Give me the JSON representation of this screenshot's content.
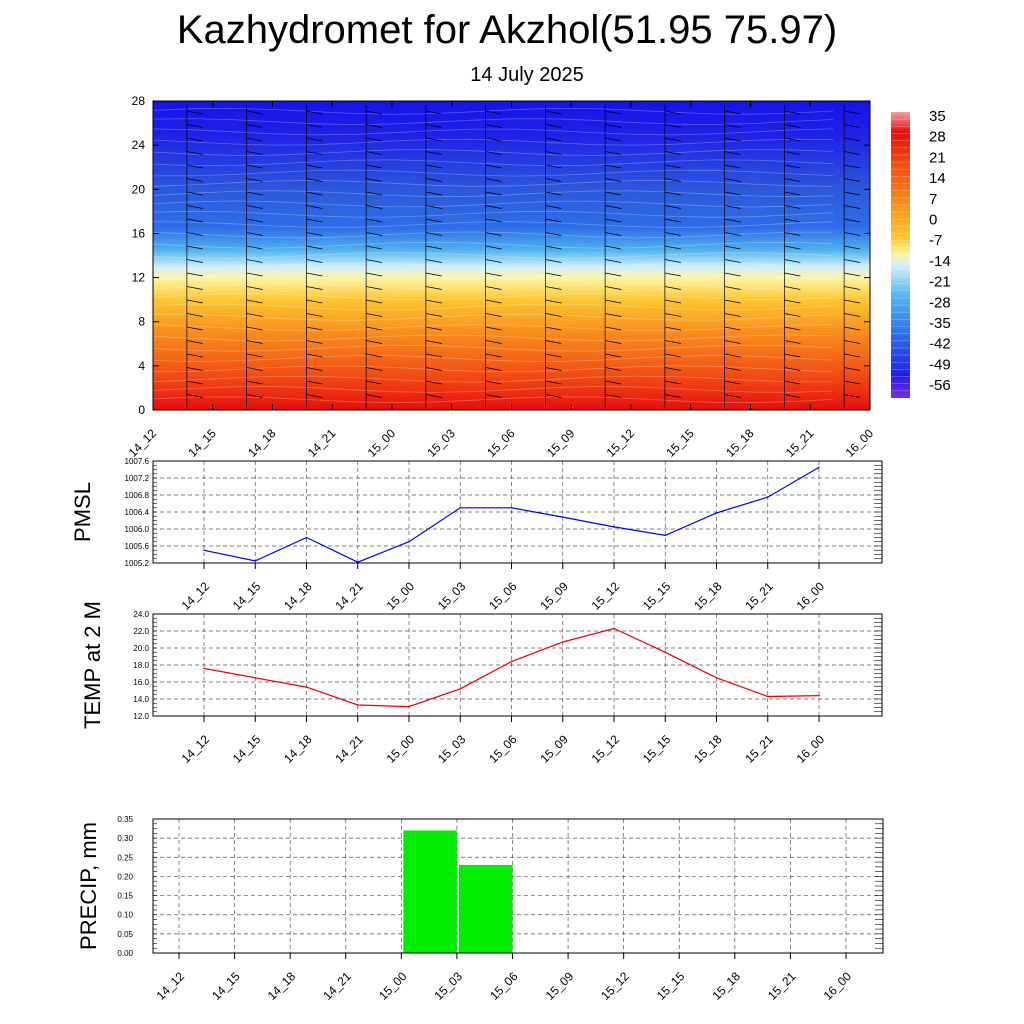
{
  "title": "Kazhydromet for Akzhol(51.95 75.97)",
  "subtitle": "14 July 2025",
  "chart_data": [
    {
      "type": "heatmap",
      "y_ticks": [
        "0",
        "4",
        "8",
        "12",
        "16",
        "20",
        "24",
        "28"
      ],
      "ylim": [
        0,
        28
      ],
      "x_ticks": [
        "14_12",
        "14_15",
        "14_18",
        "14_21",
        "15_00",
        "15_03",
        "15_06",
        "15_09",
        "15_12",
        "15_15",
        "15_18",
        "15_21",
        "16_00"
      ],
      "colorbar_labels": [
        "35",
        "28",
        "21",
        "14",
        "7",
        "0",
        "-7",
        "-14",
        "-21",
        "-28",
        "-35",
        "-42",
        "-49",
        "-56"
      ],
      "color_stops": [
        {
          "level": 0,
          "color": "#e60e0e"
        },
        {
          "level": 3,
          "color": "#f24a14"
        },
        {
          "level": 7,
          "color": "#f98d1c"
        },
        {
          "level": 10,
          "color": "#fcc830"
        },
        {
          "level": 12,
          "color": "#fff4a8"
        },
        {
          "level": 13,
          "color": "#cdeefa"
        },
        {
          "level": 14.5,
          "color": "#4fb2ee"
        },
        {
          "level": 16.5,
          "color": "#2e6ee8"
        },
        {
          "level": 20,
          "color": "#2c58dc"
        },
        {
          "level": 25,
          "color": "#2020e8"
        },
        {
          "level": 28,
          "color": "#1414ea"
        }
      ],
      "wind_barbs": true
    },
    {
      "type": "line",
      "ylabel": "PMSL",
      "ylim": [
        1005.2,
        1007.6
      ],
      "y_ticks": [
        "1005.2",
        "1005.6",
        "1006.0",
        "1006.4",
        "1006.8",
        "1007.2",
        "1007.6"
      ],
      "x": [
        "14_12",
        "14_15",
        "14_18",
        "14_21",
        "15_00",
        "15_03",
        "15_06",
        "15_09",
        "15_12",
        "15_15",
        "15_18",
        "15_21",
        "16_00"
      ],
      "values": [
        1005.5,
        1005.25,
        1005.8,
        1005.22,
        1005.7,
        1006.5,
        1006.5,
        1006.28,
        1006.05,
        1005.85,
        1006.38,
        1006.75,
        1007.45
      ],
      "color": "#0000ee",
      "grid": true
    },
    {
      "type": "line",
      "ylabel": "TEMP at 2 M",
      "ylim": [
        12.0,
        24.0
      ],
      "y_ticks": [
        "12.0",
        "14.0",
        "16.0",
        "18.0",
        "20.0",
        "22.0",
        "24.0"
      ],
      "x": [
        "14_12",
        "14_15",
        "14_18",
        "14_21",
        "15_00",
        "15_03",
        "15_06",
        "15_09",
        "15_12",
        "15_15",
        "15_18",
        "15_21",
        "16_00"
      ],
      "values": [
        17.6,
        16.5,
        15.4,
        13.3,
        13.1,
        15.2,
        18.4,
        20.7,
        22.3,
        19.5,
        16.5,
        14.3,
        14.4
      ],
      "color": "#ee0000",
      "grid": true
    },
    {
      "type": "bar",
      "ylabel": "PRECIP, mm",
      "ylim": [
        0,
        0.35
      ],
      "y_ticks": [
        "0.00",
        "0.05",
        "0.10",
        "0.15",
        "0.20",
        "0.25",
        "0.30",
        "0.35"
      ],
      "categories": [
        "14_12",
        "14_15",
        "14_18",
        "14_21",
        "15_00",
        "15_03",
        "15_06",
        "15_09",
        "15_12",
        "15_15",
        "15_18",
        "15_21",
        "16_00"
      ],
      "values": [
        0,
        0,
        0,
        0,
        0,
        0.32,
        0.23,
        0,
        0,
        0,
        0,
        0,
        0
      ],
      "color": "#00ee00",
      "grid": true
    }
  ]
}
